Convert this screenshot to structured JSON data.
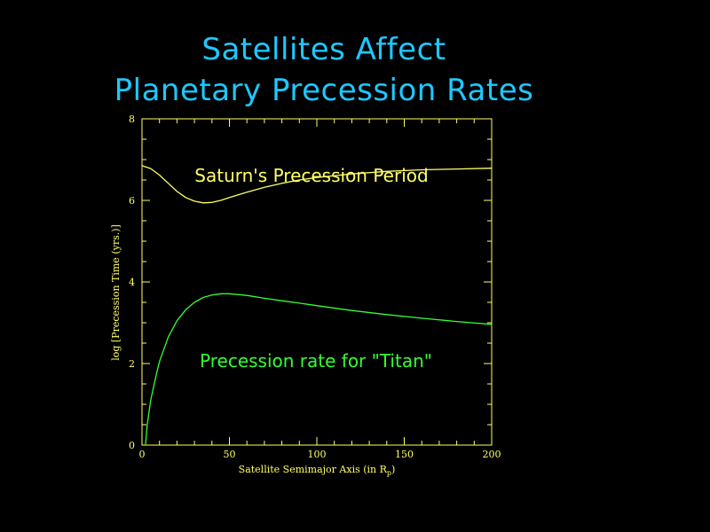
{
  "page": {
    "title_line1": "Satellites Affect",
    "title_line2": "Planetary Precession Rates"
  },
  "colors": {
    "background": "#000000",
    "title": "#1ec8ff",
    "axes": "#ffff66",
    "saturn_curve": "#ffff66",
    "titan_curve": "#33ff33"
  },
  "chart_data": {
    "type": "line",
    "title": "",
    "xlabel": "Satellite Semimajor Axis (in R",
    "xlabel_subscript": "p",
    "xlabel_close": ")",
    "ylabel": "log [Precession Time (yrs.)]",
    "xlim": [
      0,
      200
    ],
    "ylim": [
      0,
      8
    ],
    "x_ticks": [
      0,
      50,
      100,
      150,
      200
    ],
    "x_tick_labels": [
      "0",
      "50",
      "100",
      "150",
      "200"
    ],
    "y_ticks": [
      0,
      2,
      4,
      6,
      8
    ],
    "y_tick_labels": [
      "0",
      "2",
      "4",
      "6",
      "8"
    ],
    "grid": false,
    "annotations": [
      {
        "text": "Saturn's Precession Period",
        "near": "upper-center"
      },
      {
        "text": "Precession rate for \"Titan\"",
        "near": "lower-center"
      }
    ],
    "series": [
      {
        "x": [
          0,
          5,
          10,
          15,
          20,
          25,
          30,
          35,
          40,
          45,
          50,
          60,
          70,
          80,
          90,
          100,
          120,
          140,
          160,
          180,
          200
        ],
        "y": [
          6.85,
          6.78,
          6.62,
          6.42,
          6.22,
          6.07,
          5.98,
          5.94,
          5.95,
          6.0,
          6.07,
          6.2,
          6.32,
          6.42,
          6.5,
          6.56,
          6.65,
          6.71,
          6.75,
          6.77,
          6.79
        ],
        "color": "#ffff66"
      },
      {
        "x": [
          2,
          3,
          5,
          8,
          10,
          15,
          20,
          25,
          30,
          35,
          40,
          45,
          50,
          60,
          70,
          80,
          90,
          100,
          120,
          140,
          160,
          180,
          200
        ],
        "y": [
          0,
          0.5,
          1.1,
          1.7,
          2.05,
          2.65,
          3.05,
          3.32,
          3.5,
          3.62,
          3.68,
          3.71,
          3.71,
          3.67,
          3.6,
          3.54,
          3.48,
          3.42,
          3.3,
          3.2,
          3.11,
          3.03,
          2.96
        ],
        "color": "#33ff33"
      }
    ]
  }
}
